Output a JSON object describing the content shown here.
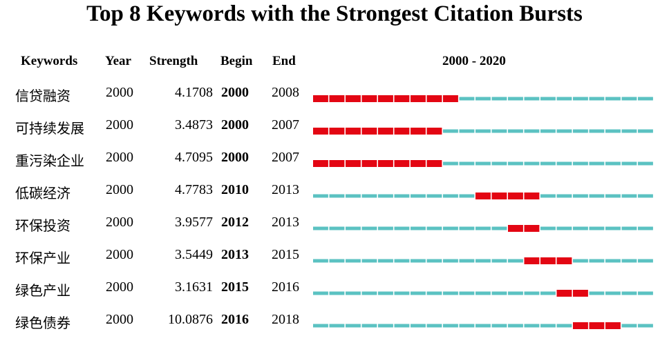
{
  "title": "Top 8 Keywords with the Strongest Citation Bursts",
  "headers": {
    "keywords": "Keywords",
    "year": "Year",
    "strength": "Strength",
    "begin": "Begin",
    "end": "End",
    "range": "2000 - 2020"
  },
  "colors": {
    "burst": "#e30613",
    "base": "#5bc2c2"
  },
  "chart_data": {
    "type": "table",
    "title": "Top 8 Keywords with the Strongest Citation Bursts",
    "range": [
      2000,
      2020
    ],
    "rows": [
      {
        "keyword": "信贷融资",
        "year": "2000",
        "strength": "4.1708",
        "begin": "2000",
        "end": "2008",
        "begin_year": 2000,
        "end_year": 2008
      },
      {
        "keyword": "可持续发展",
        "year": "2000",
        "strength": "3.4873",
        "begin": "2000",
        "end": "2007",
        "begin_year": 2000,
        "end_year": 2007
      },
      {
        "keyword": "重污染企业",
        "year": "2000",
        "strength": "4.7095",
        "begin": "2000",
        "end": "2007",
        "begin_year": 2000,
        "end_year": 2007
      },
      {
        "keyword": "低碳经济",
        "year": "2000",
        "strength": "4.7783",
        "begin": "2010",
        "end": "2013",
        "begin_year": 2010,
        "end_year": 2013
      },
      {
        "keyword": "环保投资",
        "year": "2000",
        "strength": "3.9577",
        "begin": "2012",
        "end": "2013",
        "begin_year": 2012,
        "end_year": 2013
      },
      {
        "keyword": "环保产业",
        "year": "2000",
        "strength": "3.5449",
        "begin": "2013",
        "end": "2015",
        "begin_year": 2013,
        "end_year": 2015
      },
      {
        "keyword": "绿色产业",
        "year": "2000",
        "strength": "3.1631",
        "begin": "2015",
        "end": "2016",
        "begin_year": 2015,
        "end_year": 2016
      },
      {
        "keyword": "绿色债券",
        "year": "2000",
        "strength": "10.0876",
        "begin": "2016",
        "end": "2018",
        "begin_year": 2016,
        "end_year": 2018
      }
    ]
  }
}
